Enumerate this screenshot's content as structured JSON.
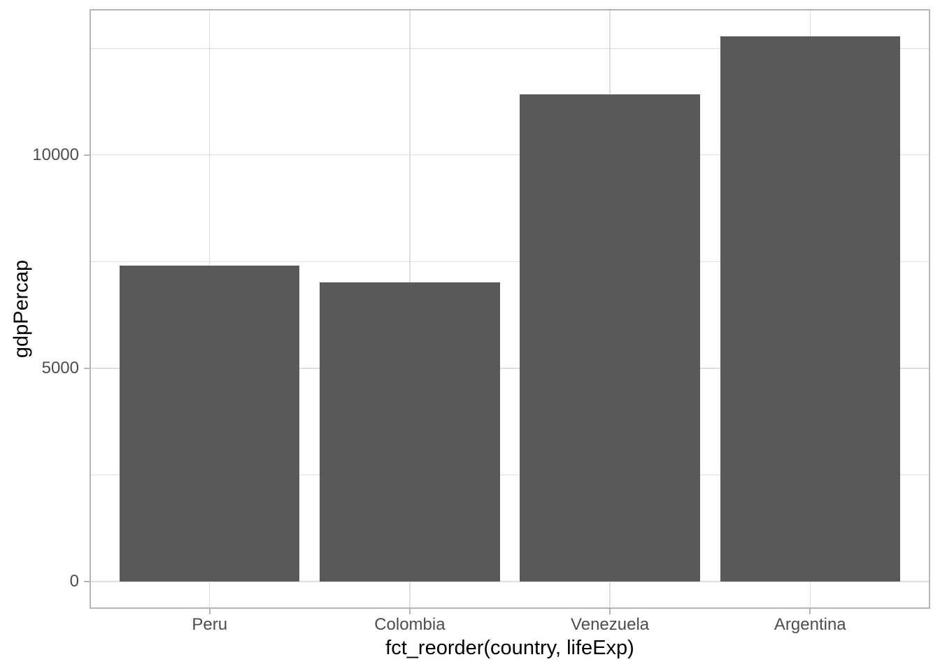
{
  "chart_data": {
    "type": "bar",
    "title": "",
    "xlabel": "fct_reorder(country, lifeExp)",
    "ylabel": "gdpPercap",
    "categories": [
      "Peru",
      "Colombia",
      "Venezuela",
      "Argentina"
    ],
    "values": [
      7408.9,
      7006.6,
      11415.8,
      12779.4
    ],
    "ylim": [
      -639,
      13418
    ],
    "y_major_ticks": [
      0,
      5000,
      10000
    ],
    "y_tick_labels": [
      "0",
      "5000",
      "10000"
    ],
    "y_minor_ticks": [
      2500,
      7500,
      12500
    ],
    "grid": true,
    "legend": "none",
    "bar_orientation": "vertical",
    "colors": {
      "bar_fill": "#595959",
      "panel_background": "#ffffff",
      "panel_border": "#b5b5b5",
      "gridline": "#dedede",
      "tick_mark": "#b5b5b5",
      "tick_text": "#4d4d4d",
      "axis_title_text": "#000000"
    }
  }
}
